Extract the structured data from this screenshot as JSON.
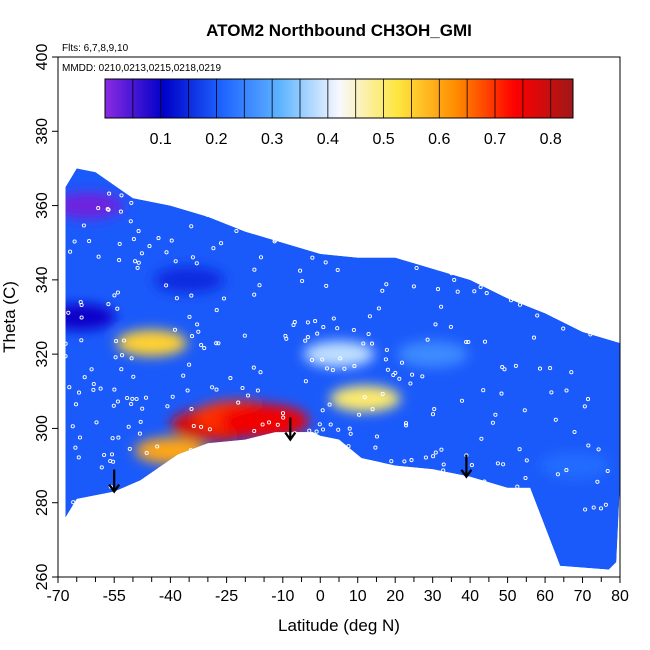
{
  "chart_data": {
    "type": "heatmap",
    "title": "ATOM2 Northbound CH3OH_GMI",
    "annotations": [
      "Flts: 6,7,8,9,10",
      "MMDD: 0210,0213,0215,0218,0219"
    ],
    "xlabel": "Latitude (deg N)",
    "ylabel": "Theta (C)",
    "xlim": [
      -70,
      80
    ],
    "ylim": [
      260,
      400
    ],
    "x_tick_labels": [
      "-70",
      "-55",
      "-40",
      "-25",
      "-10",
      "0",
      "10",
      "20",
      "30",
      "40",
      "50",
      "60",
      "70",
      "80"
    ],
    "y_tick_labels": [
      "260",
      "280",
      "300",
      "320",
      "340",
      "360",
      "380",
      "400"
    ],
    "colorbar": {
      "range": [
        0,
        0.84
      ],
      "tick_labels": [
        "0.1",
        "0.2",
        "0.3",
        "0.4",
        "0.5",
        "0.6",
        "0.7",
        "0.8"
      ],
      "colors": [
        "#8a2be2",
        "#0000c8",
        "#1e64ff",
        "#5fb4ff",
        "#f8f8ff",
        "#ffe640",
        "#ff8c00",
        "#ff0000",
        "#a01818"
      ]
    },
    "domain_lower_boundary": [
      [
        -68,
        276
      ],
      [
        -65,
        281
      ],
      [
        -55,
        283
      ],
      [
        -48,
        286
      ],
      [
        -38,
        293
      ],
      [
        -30,
        296
      ],
      [
        -20,
        297
      ],
      [
        -12,
        299
      ],
      [
        -2,
        299
      ],
      [
        0,
        298
      ],
      [
        5,
        297
      ],
      [
        11,
        292
      ],
      [
        20,
        290
      ],
      [
        30,
        289
      ],
      [
        40,
        287
      ],
      [
        50,
        284
      ],
      [
        56,
        284
      ],
      [
        64,
        263
      ],
      [
        77,
        262
      ],
      [
        79,
        264
      ],
      [
        80,
        285
      ],
      [
        80,
        323
      ]
    ],
    "domain_upper_boundary": [
      [
        80,
        323
      ],
      [
        70,
        326
      ],
      [
        60,
        331
      ],
      [
        50,
        335
      ],
      [
        40,
        340
      ],
      [
        30,
        343
      ],
      [
        20,
        346
      ],
      [
        10,
        346
      ],
      [
        0,
        347
      ],
      [
        -10,
        350
      ],
      [
        -20,
        353
      ],
      [
        -30,
        357
      ],
      [
        -40,
        360
      ],
      [
        -50,
        362
      ],
      [
        -60,
        369
      ],
      [
        -65,
        370
      ],
      [
        -68,
        365
      ],
      [
        -68,
        276
      ]
    ],
    "features": [
      {
        "lat": -28,
        "theta": 301,
        "value": 0.78
      },
      {
        "lat": -22,
        "theta": 303,
        "value": 0.7
      },
      {
        "lat": -15,
        "theta": 302,
        "value": 0.75
      },
      {
        "lat": -40,
        "theta": 294,
        "value": 0.6
      },
      {
        "lat": -45,
        "theta": 323,
        "value": 0.55
      },
      {
        "lat": 12,
        "theta": 308,
        "value": 0.5
      },
      {
        "lat": 5,
        "theta": 320,
        "value": 0.38
      },
      {
        "lat": -62,
        "theta": 360,
        "value": 0.02
      },
      {
        "lat": -64,
        "theta": 330,
        "value": 0.1
      },
      {
        "lat": -35,
        "theta": 340,
        "value": 0.15
      },
      {
        "lat": 68,
        "theta": 290,
        "value": 0.22
      },
      {
        "lat": 30,
        "theta": 320,
        "value": 0.26
      }
    ],
    "arrows": [
      {
        "lat": -55,
        "theta": 283
      },
      {
        "lat": -8,
        "theta": 297
      },
      {
        "lat": 39,
        "theta": 287
      }
    ]
  }
}
